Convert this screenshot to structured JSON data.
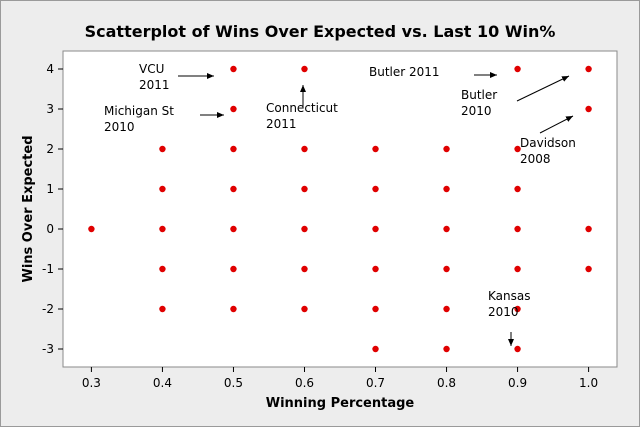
{
  "chart_data": {
    "type": "scatter",
    "title": "Scatterplot of Wins Over Expected vs. Last 10 Win%",
    "xlabel": "Winning Percentage",
    "ylabel": "Wins Over Expected",
    "xlim": [
      0.26,
      1.04
    ],
    "ylim": [
      -3.45,
      4.45
    ],
    "xticks": [
      0.3,
      0.4,
      0.5,
      0.6,
      0.7,
      0.8,
      0.9,
      1.0
    ],
    "xtick_labels": [
      "0.3",
      "0.4",
      "0.5",
      "0.6",
      "0.7",
      "0.8",
      "0.9",
      "1.0"
    ],
    "yticks": [
      4,
      3,
      2,
      1,
      0,
      -1,
      -2,
      -3
    ],
    "ytick_labels": [
      "4",
      "3",
      "2",
      "1",
      "0",
      "-1",
      "-2",
      "-3"
    ],
    "marker_color": "#e00000",
    "points": [
      {
        "x": 0.3,
        "y": 0
      },
      {
        "x": 0.4,
        "y": 2
      },
      {
        "x": 0.4,
        "y": 1
      },
      {
        "x": 0.4,
        "y": 0
      },
      {
        "x": 0.4,
        "y": -1
      },
      {
        "x": 0.4,
        "y": -2
      },
      {
        "x": 0.5,
        "y": 4
      },
      {
        "x": 0.5,
        "y": 3
      },
      {
        "x": 0.5,
        "y": 2
      },
      {
        "x": 0.5,
        "y": 1
      },
      {
        "x": 0.5,
        "y": 0
      },
      {
        "x": 0.5,
        "y": -1
      },
      {
        "x": 0.5,
        "y": -2
      },
      {
        "x": 0.6,
        "y": 4
      },
      {
        "x": 0.6,
        "y": 2
      },
      {
        "x": 0.6,
        "y": 1
      },
      {
        "x": 0.6,
        "y": 0
      },
      {
        "x": 0.6,
        "y": -1
      },
      {
        "x": 0.6,
        "y": -2
      },
      {
        "x": 0.7,
        "y": 2
      },
      {
        "x": 0.7,
        "y": 1
      },
      {
        "x": 0.7,
        "y": 0
      },
      {
        "x": 0.7,
        "y": -1
      },
      {
        "x": 0.7,
        "y": -2
      },
      {
        "x": 0.7,
        "y": -3
      },
      {
        "x": 0.8,
        "y": 2
      },
      {
        "x": 0.8,
        "y": 1
      },
      {
        "x": 0.8,
        "y": 0
      },
      {
        "x": 0.8,
        "y": -1
      },
      {
        "x": 0.8,
        "y": -2
      },
      {
        "x": 0.8,
        "y": -3
      },
      {
        "x": 0.9,
        "y": 4
      },
      {
        "x": 0.9,
        "y": 2
      },
      {
        "x": 0.9,
        "y": 1
      },
      {
        "x": 0.9,
        "y": 0
      },
      {
        "x": 0.9,
        "y": -1
      },
      {
        "x": 0.9,
        "y": -2
      },
      {
        "x": 0.9,
        "y": -3
      },
      {
        "x": 1.0,
        "y": 4
      },
      {
        "x": 1.0,
        "y": 3
      },
      {
        "x": 1.0,
        "y": 0
      },
      {
        "x": 1.0,
        "y": -1
      }
    ],
    "annotations": [
      {
        "id": "vcu",
        "lines": [
          "VCU",
          "2011"
        ],
        "target": {
          "x": 0.5,
          "y": 4
        }
      },
      {
        "id": "michigan-st",
        "lines": [
          "Michigan St",
          "2010"
        ],
        "target": {
          "x": 0.5,
          "y": 3
        }
      },
      {
        "id": "connecticut",
        "lines": [
          "Connecticut",
          "2011"
        ],
        "target": {
          "x": 0.6,
          "y": 4
        }
      },
      {
        "id": "butler-2011",
        "lines": [
          "Butler 2011"
        ],
        "target": {
          "x": 0.9,
          "y": 4
        }
      },
      {
        "id": "butler-2010",
        "lines": [
          "Butler",
          "2010"
        ],
        "target": {
          "x": 1.0,
          "y": 4
        }
      },
      {
        "id": "davidson",
        "lines": [
          "Davidson",
          "2008"
        ],
        "target": {
          "x": 1.0,
          "y": 3
        }
      },
      {
        "id": "kansas",
        "lines": [
          "Kansas",
          "2010"
        ],
        "target": {
          "x": 0.9,
          "y": -3
        }
      }
    ]
  }
}
